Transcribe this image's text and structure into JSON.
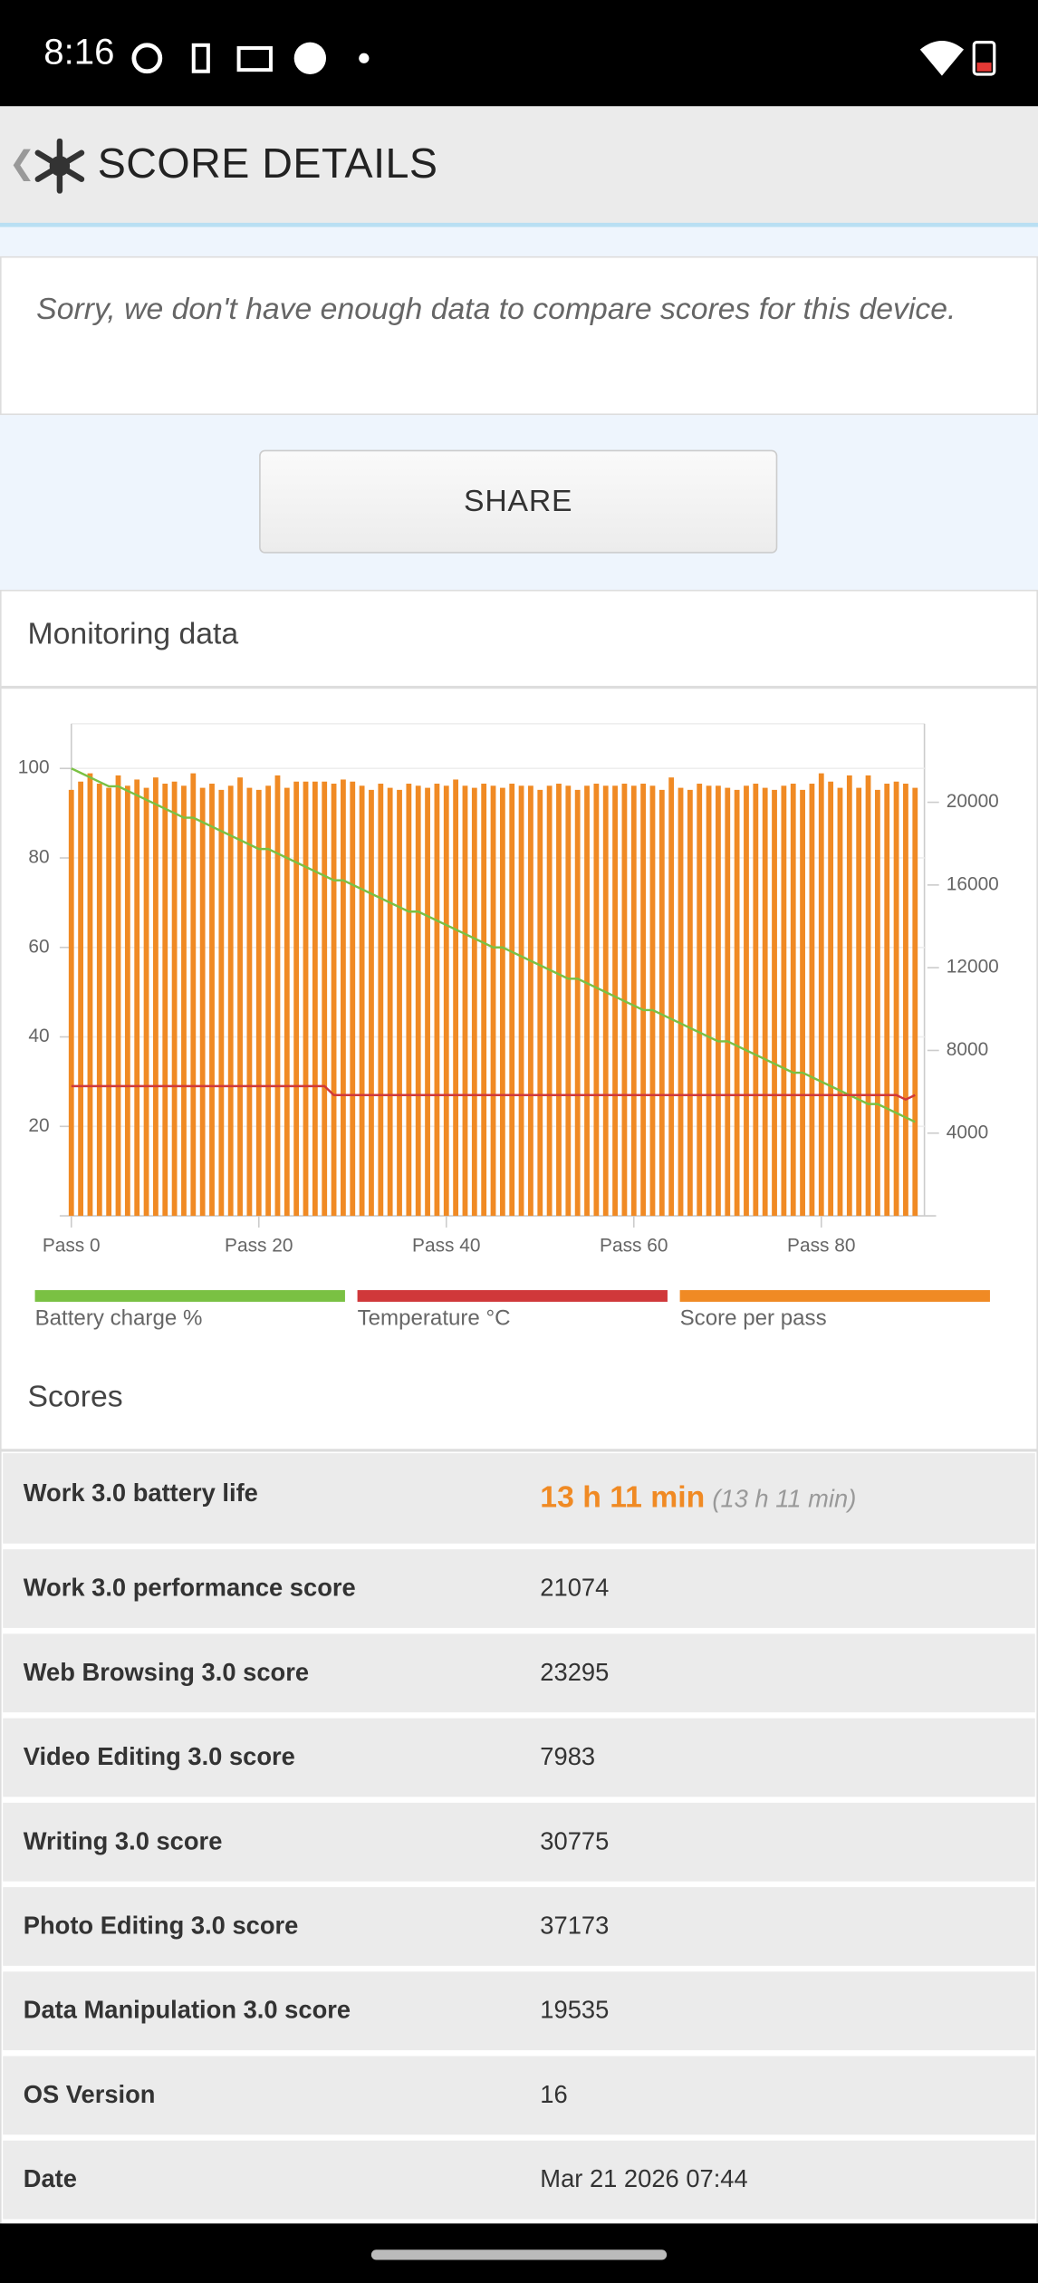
{
  "status_bar": {
    "time": "8:16"
  },
  "header": {
    "back": "❮",
    "title": "SCORE DETAILS"
  },
  "notice": "Sorry, we don't have enough data to compare scores for this device.",
  "share": "SHARE",
  "monitoring_title": "Monitoring data",
  "chart_data": {
    "type": "bar",
    "x": [
      0,
      1,
      2,
      3,
      4,
      5,
      6,
      7,
      8,
      9,
      10,
      11,
      12,
      13,
      14,
      15,
      16,
      17,
      18,
      19,
      20,
      21,
      22,
      23,
      24,
      25,
      26,
      27,
      28,
      29,
      30,
      31,
      32,
      33,
      34,
      35,
      36,
      37,
      38,
      39,
      40,
      41,
      42,
      43,
      44,
      45,
      46,
      47,
      48,
      49,
      50,
      51,
      52,
      53,
      54,
      55,
      56,
      57,
      58,
      59,
      60,
      61,
      62,
      63,
      64,
      65,
      66,
      67,
      68,
      69,
      70,
      71,
      72,
      73,
      74,
      75,
      76,
      77,
      78,
      79,
      80,
      81,
      82,
      83,
      84,
      85,
      86,
      87,
      88,
      89,
      90
    ],
    "xlim": [
      0,
      91
    ],
    "xticks": [
      {
        "value": 0,
        "label": "Pass 0"
      },
      {
        "value": 20,
        "label": "Pass 20"
      },
      {
        "value": 40,
        "label": "Pass 40"
      },
      {
        "value": 60,
        "label": "Pass 60"
      },
      {
        "value": 80,
        "label": "Pass 80"
      }
    ],
    "ylim": [
      0,
      110
    ],
    "yticks": [
      20,
      40,
      60,
      80,
      100
    ],
    "y2lim": [
      0,
      23800
    ],
    "y2ticks": [
      4000,
      8000,
      12000,
      16000,
      20000
    ],
    "grid": true,
    "series": [
      {
        "name": "Battery charge %",
        "type": "line",
        "color": "#7ac143",
        "values": [
          100,
          99,
          98,
          97,
          96,
          96,
          95,
          94,
          93,
          92,
          91,
          90,
          89,
          89,
          88,
          87,
          86,
          85,
          84,
          83,
          82,
          82,
          81,
          80,
          79,
          78,
          77,
          76,
          75,
          75,
          74,
          73,
          72,
          71,
          70,
          69,
          68,
          68,
          67,
          66,
          65,
          64,
          63,
          62,
          61,
          60,
          60,
          59,
          58,
          57,
          56,
          55,
          54,
          53,
          53,
          52,
          51,
          50,
          49,
          48,
          47,
          46,
          46,
          45,
          44,
          43,
          42,
          41,
          40,
          39,
          39,
          38,
          37,
          36,
          35,
          34,
          33,
          32,
          32,
          31,
          30,
          29,
          28,
          27,
          26,
          25,
          25,
          24,
          23,
          22,
          21
        ]
      },
      {
        "name": "Temperature °C",
        "type": "line",
        "color": "#d0383a",
        "values": [
          29,
          29,
          29,
          29,
          29,
          29,
          29,
          29,
          29,
          29,
          29,
          29,
          29,
          29,
          29,
          29,
          29,
          29,
          29,
          29,
          29,
          29,
          29,
          29,
          29,
          29,
          29,
          29,
          27,
          27,
          27,
          27,
          27,
          27,
          27,
          27,
          27,
          27,
          27,
          27,
          27,
          27,
          27,
          27,
          27,
          27,
          27,
          27,
          27,
          27,
          27,
          27,
          27,
          27,
          27,
          27,
          27,
          27,
          27,
          27,
          27,
          27,
          27,
          27,
          27,
          27,
          27,
          27,
          27,
          27,
          27,
          27,
          27,
          27,
          27,
          27,
          27,
          27,
          27,
          27,
          27,
          27,
          27,
          27,
          27,
          27,
          27,
          27,
          27,
          26,
          27
        ]
      },
      {
        "name": "Score per pass",
        "type": "bar",
        "axis": "y2",
        "color": "#f08a24",
        "values": [
          20600,
          21000,
          21400,
          20900,
          20700,
          21300,
          20800,
          21100,
          20700,
          21200,
          20900,
          21000,
          20800,
          21400,
          20700,
          20900,
          20600,
          20800,
          21200,
          20700,
          20600,
          20800,
          21300,
          20700,
          21000,
          21000,
          21000,
          21000,
          20900,
          21100,
          21000,
          20800,
          20600,
          20900,
          20700,
          20600,
          20900,
          20800,
          20700,
          20900,
          20800,
          21100,
          20800,
          20700,
          20900,
          20800,
          20700,
          20900,
          20800,
          20800,
          20600,
          20800,
          20900,
          20800,
          20600,
          20800,
          20900,
          20800,
          20800,
          20900,
          20800,
          20900,
          20800,
          20600,
          21200,
          20700,
          20600,
          20900,
          20800,
          20800,
          20700,
          20600,
          20800,
          20900,
          20700,
          20600,
          20800,
          20900,
          20600,
          20900,
          21400,
          21000,
          20700,
          21300,
          20700,
          21300,
          20600,
          20900,
          21000,
          20900,
          20700
        ]
      }
    ]
  },
  "scores_title": "Scores",
  "table": {
    "rows": [
      {
        "label": "Work 3.0 battery life",
        "value": "13 h 11 min",
        "note": "(13 h 11 min)"
      },
      {
        "label": "Work 3.0 performance score",
        "value": "21074"
      },
      {
        "label": "Web Browsing 3.0 score",
        "value": "23295"
      },
      {
        "label": "Video Editing 3.0 score",
        "value": "7983"
      },
      {
        "label": "Writing 3.0 score",
        "value": "30775"
      },
      {
        "label": "Photo Editing 3.0 score",
        "value": "37173"
      },
      {
        "label": "Data Manipulation 3.0 score",
        "value": "19535"
      },
      {
        "label": "OS Version",
        "value": "16"
      },
      {
        "label": "Date",
        "value": "Mar 21 2026 07:44"
      }
    ]
  }
}
